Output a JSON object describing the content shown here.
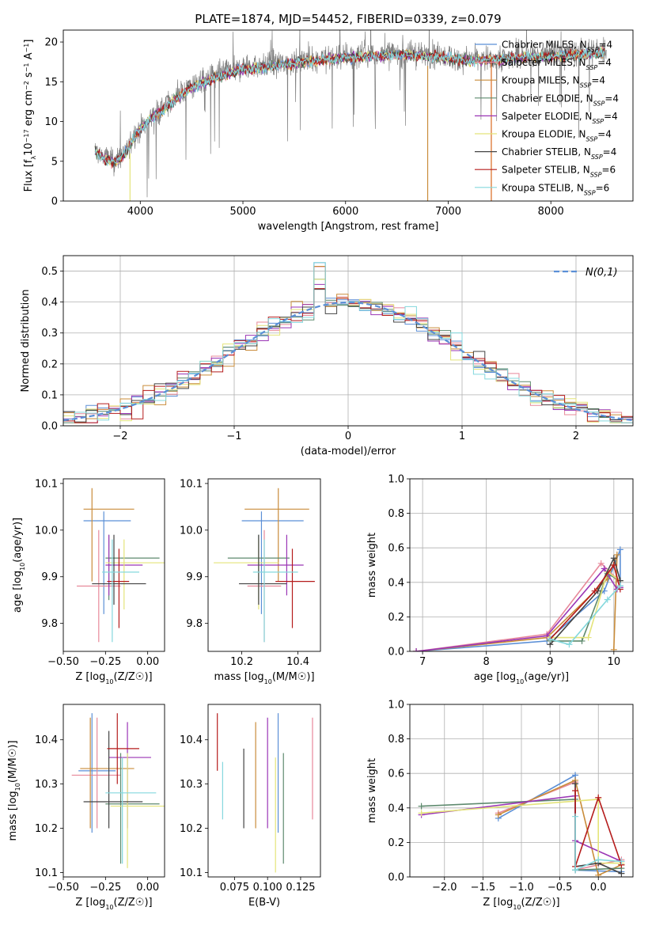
{
  "title": "PLATE=1874, MJD=54452, FIBERID=0339, z=0.079",
  "models": [
    {
      "name": "Chabrier MILES",
      "nssp": "4",
      "color": "#5b8fd6"
    },
    {
      "name": "Salpeter MILES",
      "nssp": "4",
      "color": "#e7889a"
    },
    {
      "name": "Kroupa MILES",
      "nssp": "4",
      "color": "#c98c3a"
    },
    {
      "name": "Chabrier ELODIE",
      "nssp": "4",
      "color": "#5e8a6e"
    },
    {
      "name": "Salpeter ELODIE",
      "nssp": "4",
      "color": "#9a35b5"
    },
    {
      "name": "Kroupa ELODIE",
      "nssp": "4",
      "color": "#e4e47a"
    },
    {
      "name": "Chabrier STELIB",
      "nssp": "4",
      "color": "#444444"
    },
    {
      "name": "Salpeter STELIB",
      "nssp": "6",
      "color": "#b51c1c"
    },
    {
      "name": "Kroupa STELIB",
      "nssp": "6",
      "color": "#84d8dd"
    }
  ],
  "chart_data": [
    {
      "id": "spectrum",
      "type": "line",
      "xlabel": "wavelength [Angstrom, rest frame]",
      "ylabel": "Flux [f_λ10^-17 erg cm^-2 s^-1 A^-1]",
      "xlim": [
        3250,
        8800
      ],
      "ylim": [
        0,
        21.5
      ],
      "xticks": [
        4000,
        5000,
        6000,
        7000,
        8000
      ],
      "yticks": [
        0,
        5,
        10,
        15,
        20
      ],
      "observed_continuum": {
        "x": [
          3550,
          3650,
          3750,
          3850,
          3950,
          4100,
          4300,
          4500,
          4800,
          5000,
          5200,
          5500,
          5800,
          6000,
          6300,
          6600,
          6900,
          7200,
          7500,
          7800,
          8100,
          8400,
          8550
        ],
        "y": [
          6.5,
          5.5,
          5.0,
          6.0,
          8.5,
          10.5,
          12.5,
          14.5,
          16.0,
          16.8,
          17.0,
          17.5,
          18.0,
          18.2,
          18.5,
          18.6,
          18.3,
          17.8,
          18.0,
          18.3,
          18.5,
          18.7,
          19.0
        ]
      },
      "model_dropouts": [
        3900,
        6800,
        7420
      ]
    },
    {
      "id": "residuals",
      "type": "histogram",
      "xlabel": "(data-model)/error",
      "ylabel": "Normed distribution",
      "xlim": [
        -2.5,
        2.5
      ],
      "ylim": [
        0,
        0.55
      ],
      "xticks": [
        -2,
        -1,
        0,
        1,
        2
      ],
      "yticks": [
        0.0,
        0.1,
        0.2,
        0.3,
        0.4,
        0.5
      ],
      "reference_curve": "N(0,1)",
      "bin_width": 0.1,
      "bin_start": -2.5
    },
    {
      "id": "age_vs_Z",
      "type": "errorbar",
      "xlabel": "Z [log10(Z/Z☉)]",
      "ylabel": "age [log10(age/yr)]",
      "xlim": [
        -0.5,
        0.1
      ],
      "ylim": [
        9.74,
        10.11
      ],
      "xticks": [
        -0.5,
        -0.25,
        0.0
      ],
      "yticks": [
        9.8,
        9.9,
        10.0,
        10.1
      ],
      "points": [
        {
          "x": -0.26,
          "xlo": -0.38,
          "xhi": -0.1,
          "y": 10.02,
          "ylo": 9.82,
          "yhi": 10.04
        },
        {
          "x": -0.29,
          "xlo": -0.42,
          "xhi": -0.16,
          "y": 9.88,
          "ylo": 9.76,
          "yhi": 10.0
        },
        {
          "x": -0.33,
          "xlo": -0.38,
          "xhi": -0.08,
          "y": 10.045,
          "ylo": 9.89,
          "yhi": 10.09
        },
        {
          "x": -0.23,
          "xlo": -0.25,
          "xhi": 0.07,
          "y": 9.94,
          "ylo": 9.85,
          "yhi": 9.99
        },
        {
          "x": -0.23,
          "xlo": -0.25,
          "xhi": -0.03,
          "y": 9.925,
          "ylo": 9.86,
          "yhi": 9.99
        },
        {
          "x": -0.14,
          "xlo": -0.25,
          "xhi": 0.1,
          "y": 9.93,
          "ylo": 9.83,
          "yhi": 9.98
        },
        {
          "x": -0.2,
          "xlo": -0.33,
          "xhi": -0.01,
          "y": 9.885,
          "ylo": 9.84,
          "yhi": 9.99
        },
        {
          "x": -0.17,
          "xlo": -0.24,
          "xhi": -0.11,
          "y": 9.89,
          "ylo": 9.79,
          "yhi": 9.96
        },
        {
          "x": -0.21,
          "xlo": -0.27,
          "xhi": -0.05,
          "y": 9.91,
          "ylo": 9.76,
          "yhi": 9.98
        }
      ]
    },
    {
      "id": "age_vs_mass",
      "type": "errorbar",
      "xlabel": "mass [log10(M/M☉)]",
      "xlim": [
        10.08,
        10.48
      ],
      "ylim": [
        9.74,
        10.11
      ],
      "xticks": [
        10.2,
        10.4
      ],
      "yticks": [
        9.8,
        9.9,
        10.0,
        10.1
      ],
      "points": [
        {
          "x": 10.27,
          "xlo": 10.2,
          "xhi": 10.42,
          "y": 10.02,
          "ylo": 9.82,
          "yhi": 10.04
        },
        {
          "x": 10.28,
          "xlo": 10.22,
          "xhi": 10.34,
          "y": 9.88,
          "ylo": 9.76,
          "yhi": 10.0
        },
        {
          "x": 10.33,
          "xlo": 10.21,
          "xhi": 10.44,
          "y": 10.045,
          "ylo": 9.89,
          "yhi": 10.09
        },
        {
          "x": 10.26,
          "xlo": 10.15,
          "xhi": 10.37,
          "y": 9.94,
          "ylo": 9.85,
          "yhi": 9.99
        },
        {
          "x": 10.36,
          "xlo": 10.22,
          "xhi": 10.42,
          "y": 9.925,
          "ylo": 9.86,
          "yhi": 9.99
        },
        {
          "x": 10.26,
          "xlo": 10.1,
          "xhi": 10.33,
          "y": 9.93,
          "ylo": 9.83,
          "yhi": 9.98
        },
        {
          "x": 10.26,
          "xlo": 10.19,
          "xhi": 10.36,
          "y": 9.885,
          "ylo": 9.84,
          "yhi": 9.99
        },
        {
          "x": 10.38,
          "xlo": 10.32,
          "xhi": 10.46,
          "y": 9.89,
          "ylo": 9.79,
          "yhi": 9.96
        },
        {
          "x": 10.28,
          "xlo": 10.24,
          "xhi": 10.4,
          "y": 9.91,
          "ylo": 9.76,
          "yhi": 9.98
        }
      ]
    },
    {
      "id": "mass_vs_Z",
      "type": "errorbar",
      "xlabel": "Z [log10(Z/Z☉)]",
      "ylabel": "mass [log10(M/M☉)]",
      "xlim": [
        -0.5,
        0.1
      ],
      "ylim": [
        10.09,
        10.48
      ],
      "xticks": [
        -0.5,
        -0.25,
        0.0
      ],
      "yticks": [
        10.1,
        10.2,
        10.3,
        10.4
      ],
      "points": [
        {
          "x": -0.33,
          "xlo": -0.41,
          "xhi": -0.19,
          "y": 10.33,
          "ylo": 10.19,
          "yhi": 10.46
        },
        {
          "x": -0.3,
          "xlo": -0.45,
          "xhi": -0.16,
          "y": 10.32,
          "ylo": 10.2,
          "yhi": 10.45
        },
        {
          "x": -0.34,
          "xlo": -0.4,
          "xhi": -0.08,
          "y": 10.335,
          "ylo": 10.2,
          "yhi": 10.45
        },
        {
          "x": -0.16,
          "xlo": -0.25,
          "xhi": 0.07,
          "y": 10.255,
          "ylo": 10.12,
          "yhi": 10.37
        },
        {
          "x": -0.12,
          "xlo": -0.23,
          "xhi": 0.02,
          "y": 10.36,
          "ylo": 10.2,
          "yhi": 10.44
        },
        {
          "x": -0.12,
          "xlo": -0.22,
          "xhi": 0.1,
          "y": 10.25,
          "ylo": 10.11,
          "yhi": 10.37
        },
        {
          "x": -0.23,
          "xlo": -0.38,
          "xhi": -0.03,
          "y": 10.26,
          "ylo": 10.2,
          "yhi": 10.42
        },
        {
          "x": -0.18,
          "xlo": -0.24,
          "xhi": -0.05,
          "y": 10.38,
          "ylo": 10.3,
          "yhi": 10.46
        },
        {
          "x": -0.15,
          "xlo": -0.25,
          "xhi": 0.05,
          "y": 10.28,
          "ylo": 10.12,
          "yhi": 10.36
        }
      ]
    },
    {
      "id": "mass_vs_ebv",
      "type": "errorbar",
      "xlabel": "E(B-V)",
      "xlim": [
        0.055,
        0.14
      ],
      "ylim": [
        10.09,
        10.48
      ],
      "xticks": [
        0.075,
        0.1,
        0.125
      ],
      "yticks": [
        10.1,
        10.2,
        10.3,
        10.4
      ],
      "points": [
        {
          "x": 0.108,
          "y": 10.33,
          "ylo": 10.19,
          "yhi": 10.46
        },
        {
          "x": 0.134,
          "y": 10.32,
          "ylo": 10.22,
          "yhi": 10.45
        },
        {
          "x": 0.091,
          "y": 10.335,
          "ylo": 10.2,
          "yhi": 10.44
        },
        {
          "x": 0.112,
          "y": 10.255,
          "ylo": 10.12,
          "yhi": 10.37
        },
        {
          "x": 0.1,
          "y": 10.36,
          "ylo": 10.2,
          "yhi": 10.45
        },
        {
          "x": 0.106,
          "y": 10.25,
          "ylo": 10.1,
          "yhi": 10.36
        },
        {
          "x": 0.082,
          "y": 10.26,
          "ylo": 10.2,
          "yhi": 10.38
        },
        {
          "x": 0.062,
          "y": 10.38,
          "ylo": 10.33,
          "yhi": 10.46
        },
        {
          "x": 0.066,
          "y": 10.28,
          "ylo": 10.22,
          "yhi": 10.35
        }
      ]
    },
    {
      "id": "weight_vs_age",
      "type": "line",
      "xlabel": "age [log10(age/yr)]",
      "ylabel": "mass weight",
      "xlim": [
        6.8,
        10.3
      ],
      "ylim": [
        0,
        1.0
      ],
      "xticks": [
        7,
        8,
        9,
        10
      ],
      "yticks": [
        0.0,
        0.2,
        0.4,
        0.6,
        0.8,
        1.0
      ],
      "series": [
        {
          "x": [
            6.9,
            8.95,
            9.85,
            10.1,
            10.1
          ],
          "y": [
            0.0,
            0.06,
            0.35,
            0.59,
            0.38
          ]
        },
        {
          "x": [
            6.9,
            8.95,
            9.8,
            10.05,
            10.1
          ],
          "y": [
            0.0,
            0.1,
            0.51,
            0.42,
            0.37
          ]
        },
        {
          "x": [
            6.9,
            8.95,
            9.9,
            10.05,
            10.0
          ],
          "y": [
            0.0,
            0.08,
            0.42,
            0.56,
            0.01
          ]
        },
        {
          "x": [
            9.0,
            9.5,
            9.9,
            10.1
          ],
          "y": [
            0.06,
            0.06,
            0.45,
            0.41
          ]
        },
        {
          "x": [
            6.9,
            8.95,
            9.85,
            10.05,
            10.1
          ],
          "y": [
            0.0,
            0.09,
            0.48,
            0.36,
            0.37
          ]
        },
        {
          "x": [
            9.0,
            9.6,
            9.9,
            10.1
          ],
          "y": [
            0.08,
            0.08,
            0.46,
            0.41
          ]
        },
        {
          "x": [
            9.0,
            9.75,
            10.0,
            10.1
          ],
          "y": [
            0.04,
            0.35,
            0.54,
            0.41
          ]
        },
        {
          "x": [
            9.0,
            9.7,
            10.0,
            10.1
          ],
          "y": [
            0.07,
            0.35,
            0.5,
            0.36
          ]
        },
        {
          "x": [
            9.0,
            9.3,
            9.9,
            10.1
          ],
          "y": [
            0.07,
            0.04,
            0.3,
            0.38
          ]
        }
      ]
    },
    {
      "id": "weight_vs_Z",
      "type": "line",
      "xlabel": "Z [log10(Z/Z☉)]",
      "ylabel": "mass weight",
      "xlim": [
        -2.45,
        0.45
      ],
      "ylim": [
        0,
        1.0
      ],
      "xticks": [
        -2.0,
        -1.5,
        -1.0,
        -0.5,
        0.0
      ],
      "yticks": [
        0.0,
        0.2,
        0.4,
        0.6,
        0.8,
        1.0
      ],
      "series": [
        {
          "x": [
            -1.3,
            -0.3,
            -0.3,
            0.3
          ],
          "y": [
            0.34,
            0.59,
            0.04,
            0.03
          ]
        },
        {
          "x": [
            -1.3,
            -0.3,
            -0.3,
            0.3
          ],
          "y": [
            0.37,
            0.55,
            0.04,
            0.1
          ]
        },
        {
          "x": [
            -1.3,
            -0.3,
            0.0,
            0.3
          ],
          "y": [
            0.36,
            0.56,
            0.01,
            0.07
          ]
        },
        {
          "x": [
            -2.3,
            -0.3,
            -0.3,
            0.3
          ],
          "y": [
            0.41,
            0.45,
            0.04,
            0.05
          ]
        },
        {
          "x": [
            -2.3,
            -0.3,
            -0.3,
            0.3
          ],
          "y": [
            0.36,
            0.47,
            0.21,
            0.09
          ]
        },
        {
          "x": [
            -2.3,
            0.0,
            0.0,
            0.3
          ],
          "y": [
            0.37,
            0.45,
            0.08,
            0.08
          ]
        },
        {
          "x": [
            -0.3,
            -0.3,
            0.0,
            0.3
          ],
          "y": [
            0.54,
            0.06,
            0.08,
            0.02
          ]
        },
        {
          "x": [
            -0.3,
            -0.3,
            0.0,
            0.3
          ],
          "y": [
            0.5,
            0.06,
            0.46,
            0.07
          ]
        },
        {
          "x": [
            -0.3,
            -0.3,
            0.0,
            0.3
          ],
          "y": [
            0.35,
            0.04,
            0.1,
            0.09
          ]
        }
      ]
    }
  ]
}
